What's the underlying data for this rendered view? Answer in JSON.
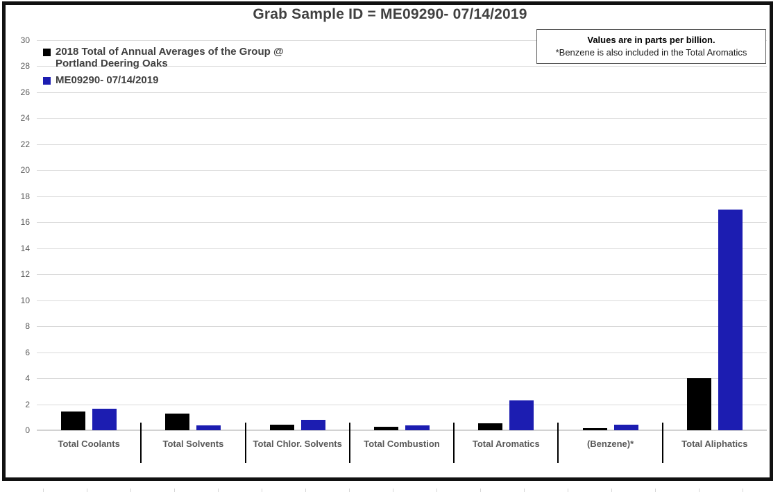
{
  "chart_data": {
    "type": "bar",
    "title": "Grab Sample ID = ME09290- 07/14/2019",
    "categories": [
      "Total Coolants",
      "Total Solvents",
      "Total Chlor. Solvents",
      "Total Combustion",
      "Total Aromatics",
      "(Benzene)*",
      "Total Aliphatics"
    ],
    "series": [
      {
        "name": "2018 Total of Annual Averages of the Group @ Portland Deering Oaks",
        "color": "#000000",
        "values": [
          1.45,
          1.3,
          0.45,
          0.25,
          0.55,
          0.15,
          4
        ]
      },
      {
        "name": "ME09290- 07/14/2019",
        "color": "#1c1db1",
        "values": [
          1.65,
          0.4,
          0.8,
          0.35,
          2.3,
          0.45,
          17
        ]
      }
    ],
    "ylim": [
      0,
      30
    ],
    "ytick_step": 2,
    "grid": true,
    "legend_position": "top-left",
    "xlabel": "",
    "ylabel": ""
  },
  "note_box": {
    "line1": "Values are in parts per billion.",
    "line2": "*Benzene is also included in the Total Aromatics"
  },
  "colors": {
    "series_2018": "#000000",
    "series_sample": "#1c1db1",
    "gridline": "#d9d9d9",
    "title_text": "#404040",
    "axis_text": "#595959",
    "chart_border": "#111111"
  }
}
